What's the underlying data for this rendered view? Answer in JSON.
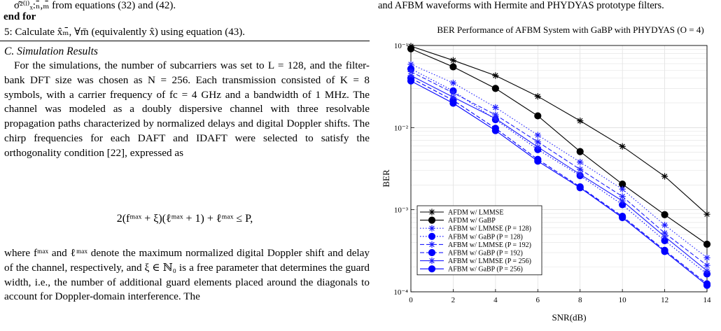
{
  "left": {
    "algo_line1": "σ̂²⁽ˡ⁾ₓ:ₙ̄,ₘ̄ from equations (32) and (42).",
    "algo_end": "end for",
    "algo_step": "5: Calculate x̂ₘ̄, ∀m̄ (equivalently x̂) using equation (43).",
    "section_title": "C. Simulation Results",
    "para1": "For the simulations, the number of subcarriers was set to L = 128, and the filter-bank DFT size was chosen as N = 256. Each transmission consisted of K = 8 symbols, with a carrier frequency of fc = 4 GHz and a bandwidth of 1 MHz. The channel was modeled as a doubly dispersive channel with three resolvable propagation paths characterized by normalized delays and digital Doppler shifts. The chirp frequencies for each DAFT and IDAFT were selected to satisfy the orthogonality condition [22], expressed as",
    "equation": "2(fᵐᵃˣ + ξ)(ℓᵐᵃˣ + 1) + ℓᵐᵃˣ ≤ P,",
    "para2": "where fᵐᵃˣ and ℓᵐᵃˣ denote the maximum normalized digital Doppler shift and delay of the channel, respectively, and ξ ∈ ℕ₀ is a free parameter that determines the guard width, i.e., the number of additional guard elements placed around the diagonals to account for Doppler-domain interference. The"
  },
  "right": {
    "caption_top": "and AFBM waveforms with Hermite and PHYDYAS prototype filters."
  },
  "chart_data": {
    "type": "line",
    "title": "BER Performance of AFBM System with GaBP with PHYDYAS (O = 4)",
    "xlabel": "SNR(dB)",
    "ylabel": "BER",
    "x": [
      0,
      2,
      4,
      6,
      8,
      10,
      12,
      14
    ],
    "xlim": [
      0,
      14
    ],
    "ylim": [
      0.0001,
      0.1
    ],
    "yscale": "log",
    "grid": true,
    "legend_position": "bottom-left",
    "x_tick_labels": [
      "0",
      "2",
      "4",
      "6",
      "8",
      "10",
      "12",
      "14"
    ],
    "y_tick_labels": [
      "10⁻⁴",
      "10⁻³",
      "10⁻²",
      "10⁻¹"
    ],
    "series": [
      {
        "name": "AFDM w/ LMMSE",
        "color": "#000000",
        "marker": "star",
        "dash": "solid",
        "values": [
          0.098,
          0.066,
          0.043,
          0.024,
          0.0121,
          0.0059,
          0.00255,
          0.00088
        ]
      },
      {
        "name": "AFDM w/ GaBP",
        "color": "#000000",
        "marker": "circle",
        "dash": "solid",
        "values": [
          0.091,
          0.055,
          0.03,
          0.0139,
          0.0051,
          0.00205,
          0.00087,
          0.00038
        ]
      },
      {
        "name": "AFBM w/ LMMSE (P = 128)",
        "color": "#1f1fff",
        "marker": "star",
        "dash": "dotted",
        "values": [
          0.059,
          0.035,
          0.0176,
          0.0081,
          0.0038,
          0.00178,
          0.00065,
          0.00026
        ]
      },
      {
        "name": "AFBM w/ GaBP (P = 128)",
        "color": "#0000ff",
        "marker": "circle",
        "dash": "dotted",
        "values": [
          0.052,
          0.028,
          0.0125,
          0.0054,
          0.0026,
          0.00115,
          0.00042,
          0.000165
        ]
      },
      {
        "name": "AFBM w/ LMMSE (P = 192)",
        "color": "#1f1fff",
        "marker": "star",
        "dash": "dashed",
        "values": [
          0.048,
          0.0265,
          0.0143,
          0.0067,
          0.0031,
          0.00145,
          0.00052,
          0.00021
        ]
      },
      {
        "name": "AFBM w/ GaBP (P = 192)",
        "color": "#0000ff",
        "marker": "circle",
        "dash": "dashed",
        "values": [
          0.04,
          0.0215,
          0.0098,
          0.0041,
          0.0019,
          0.00083,
          0.00032,
          0.000125
        ]
      },
      {
        "name": "AFBM w/ LMMSE (P = 256)",
        "color": "#1f1fff",
        "marker": "star",
        "dash": "solid",
        "values": [
          0.043,
          0.0235,
          0.0129,
          0.0058,
          0.0027,
          0.00128,
          0.00047,
          0.00018
        ]
      },
      {
        "name": "AFBM w/ GaBP (P = 256)",
        "color": "#0000ff",
        "marker": "circle",
        "dash": "solid",
        "values": [
          0.037,
          0.0198,
          0.0092,
          0.0039,
          0.00185,
          0.0008,
          0.00031,
          0.00012
        ]
      }
    ]
  }
}
